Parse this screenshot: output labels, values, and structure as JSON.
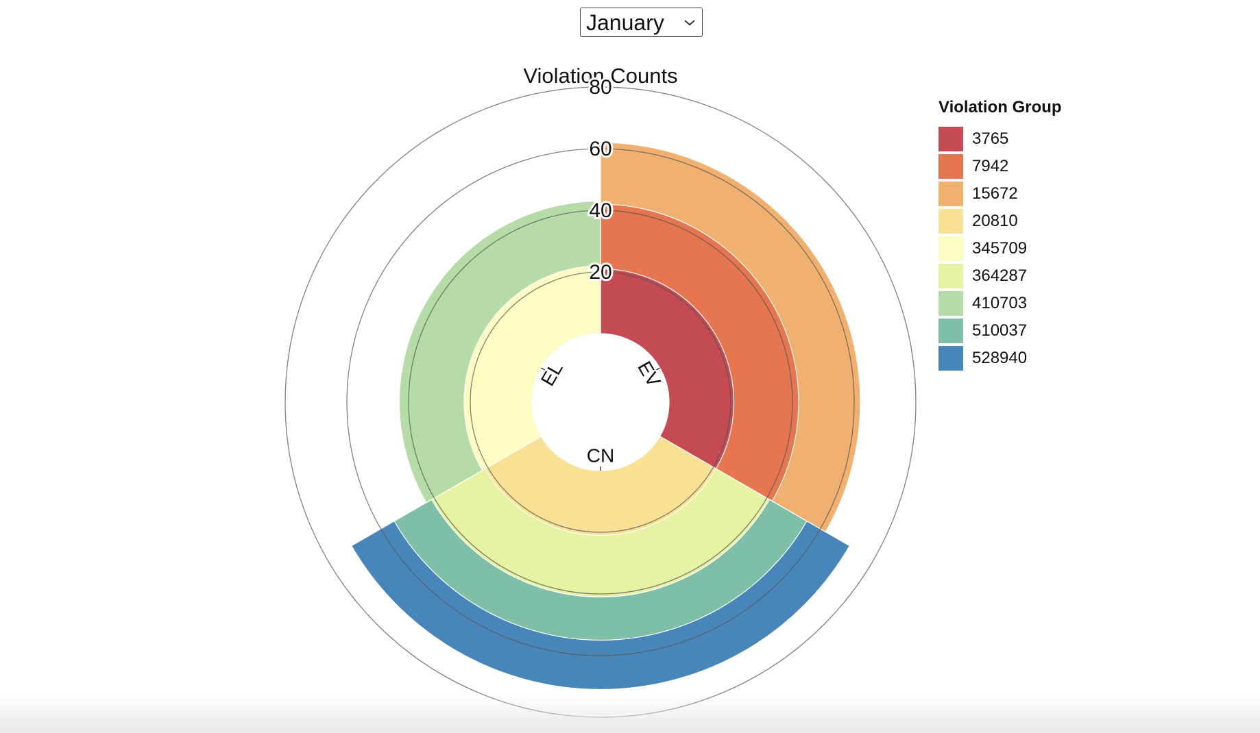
{
  "controls": {
    "month_select": {
      "value": "January",
      "options": [
        "January"
      ]
    }
  },
  "chart_data": {
    "type": "radial-bar",
    "title": "Violation Counts",
    "legend_title": "Violation Group",
    "legend_placement": "right",
    "radial_axis": {
      "ticks": [
        20,
        40,
        60,
        80
      ],
      "max": 80
    },
    "categories": [
      "EV",
      "CN",
      "EL"
    ],
    "series": [
      {
        "name": "3765",
        "color": "#c44a53",
        "values": [
          21,
          null,
          null
        ]
      },
      {
        "name": "7942",
        "color": "#e57650",
        "values": [
          42,
          null,
          null
        ]
      },
      {
        "name": "15672",
        "color": "#f0b06f",
        "values": [
          62,
          null,
          null
        ]
      },
      {
        "name": "20810",
        "color": "#f8e095",
        "values": [
          null,
          21,
          null
        ]
      },
      {
        "name": "345709",
        "color": "#fdfdc3",
        "values": [
          null,
          null,
          22
        ]
      },
      {
        "name": "364287",
        "color": "#e7f3a3",
        "values": [
          null,
          41,
          null
        ]
      },
      {
        "name": "410703",
        "color": "#b5dca7",
        "values": [
          null,
          null,
          43
        ]
      },
      {
        "name": "510037",
        "color": "#7fbfa8",
        "values": [
          null,
          55,
          null
        ]
      },
      {
        "name": "528940",
        "color": "#4886b9",
        "values": [
          null,
          71,
          null
        ]
      }
    ]
  }
}
